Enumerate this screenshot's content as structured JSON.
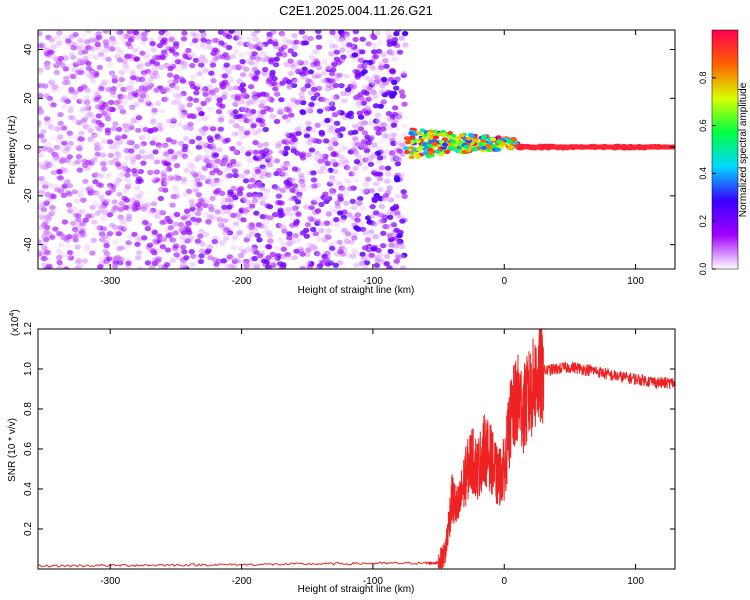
{
  "title": "C2E1.2025.004.11.26.G21",
  "chart_data": [
    {
      "type": "heatmap",
      "xlabel": "Height of straight line (km)",
      "ylabel": "Frequency (Hz)",
      "xlim": [
        -355,
        130
      ],
      "ylim": [
        -50,
        48
      ],
      "x_ticks": [
        -300,
        -200,
        -100,
        0,
        100
      ],
      "y_ticks": [
        -40,
        -20,
        0,
        20,
        40
      ],
      "colorbar": {
        "label": "Normalized spectral amplitude",
        "range": [
          0,
          1
        ],
        "ticks": [
          "0.0",
          "0.2",
          "0.4",
          "0.6",
          "0.8"
        ],
        "colors": [
          "#ffffff",
          "#a000ff",
          "#3a00ff",
          "#00d8ff",
          "#00ff40",
          "#d8ff00",
          "#ff6000",
          "#ff0050"
        ]
      },
      "description_regions": [
        {
          "x": [
            -355,
            -75
          ],
          "freq": [
            -50,
            48
          ],
          "amplitude": [
            0.05,
            0.25
          ],
          "pattern": "noise"
        },
        {
          "x": [
            -75,
            10
          ],
          "freq": [
            -3,
            6
          ],
          "amplitude": [
            0.3,
            1.0
          ],
          "pattern": "signal"
        },
        {
          "x": [
            10,
            130
          ],
          "freq": [
            -1,
            1
          ],
          "amplitude": [
            0.9,
            1.0
          ],
          "pattern": "tone"
        }
      ]
    },
    {
      "type": "line",
      "xlabel": "Height of straight line (km)",
      "ylabel": "SNR (10 * v/v)",
      "y_multiplier": "(x10",
      "y_multiplier_exp": "4",
      "xlim": [
        -355,
        130
      ],
      "ylim": [
        0,
        1.2
      ],
      "x_ticks": [
        -300,
        -200,
        -100,
        0,
        100
      ],
      "y_ticks": [
        "0.2",
        "0.4",
        "0.6",
        "0.8",
        "1.0",
        "1.2"
      ],
      "series": [
        {
          "color": "#ee2222",
          "x": [
            -355,
            -300,
            -250,
            -200,
            -150,
            -100,
            -60,
            -50,
            -45,
            -40,
            -35,
            -30,
            -25,
            -20,
            -15,
            -10,
            -5,
            0,
            5,
            10,
            15,
            20,
            25,
            30,
            40,
            50,
            60,
            70,
            80,
            90,
            100,
            110,
            120,
            130
          ],
          "values": [
            0.015,
            0.018,
            0.02,
            0.022,
            0.025,
            0.028,
            0.03,
            0.03,
            0.08,
            0.35,
            0.3,
            0.45,
            0.55,
            0.5,
            0.6,
            0.55,
            0.45,
            0.5,
            0.75,
            0.85,
            0.8,
            0.88,
            0.95,
            0.99,
            1.0,
            1.01,
            1.0,
            0.99,
            0.97,
            0.96,
            0.95,
            0.94,
            0.93,
            0.93
          ]
        }
      ]
    }
  ]
}
